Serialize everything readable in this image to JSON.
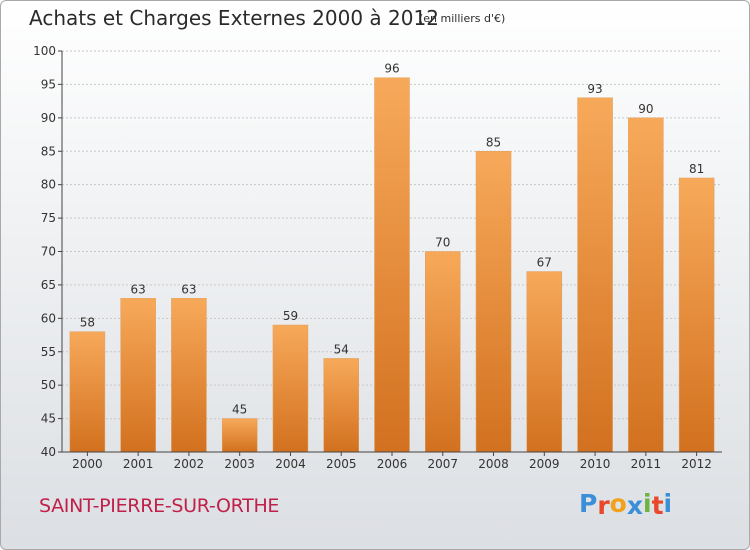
{
  "header": {
    "title": "Achats et Charges Externes 2000 à 2012",
    "subtitle": "(en milliers d'€)"
  },
  "footer": {
    "city": "SAINT-PIERRE-SUR-ORTHE",
    "logo": "Proxiti",
    "logo_colors": [
      "#3a8fd8",
      "#e8492a",
      "#f2a11a",
      "#3a8fd8",
      "#6cb33f",
      "#e8492a",
      "#3a8fd8"
    ]
  },
  "colors": {
    "bar_light": "#f7a95a",
    "bar_dark": "#d2711f",
    "axis": "#444444",
    "grid": "#c8c8c8"
  },
  "chart_data": {
    "type": "bar",
    "categories": [
      "2000",
      "2001",
      "2002",
      "2003",
      "2004",
      "2005",
      "2006",
      "2007",
      "2008",
      "2009",
      "2010",
      "2011",
      "2012"
    ],
    "values": [
      58,
      63,
      63,
      45,
      59,
      54,
      96,
      70,
      85,
      67,
      93,
      90,
      81
    ],
    "ylim": [
      40,
      100
    ],
    "yticks": [
      40,
      45,
      50,
      55,
      60,
      65,
      70,
      75,
      80,
      85,
      90,
      95,
      100
    ],
    "grid": true
  }
}
